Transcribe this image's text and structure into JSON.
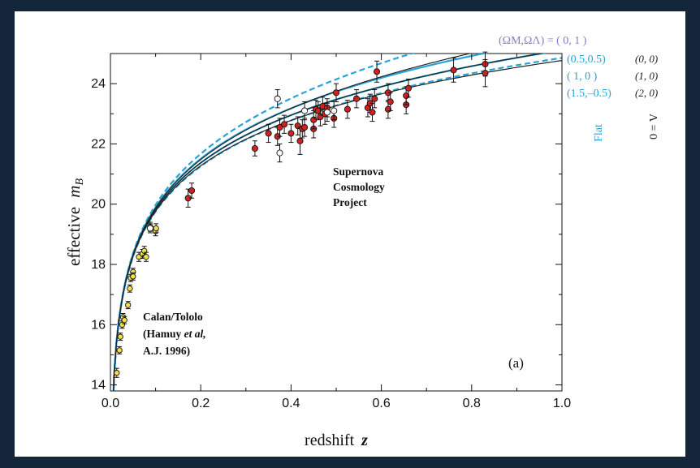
{
  "chart_data": {
    "type": "scatter",
    "xlabel_text": "redshift",
    "xlabel_var": "z",
    "ylabel_text": "effective",
    "ylabel_var": "m",
    "ylabel_sub": "B",
    "xlim": [
      0.0,
      1.0
    ],
    "ylim": [
      13.8,
      25.0
    ],
    "xticks": [
      "0.0",
      "0.2",
      "0.4",
      "0.6",
      "0.8",
      "1.0"
    ],
    "xtick_values": [
      0.0,
      0.2,
      0.4,
      0.6,
      0.8,
      1.0
    ],
    "yticks": [
      "14",
      "16",
      "18",
      "20",
      "22",
      "24"
    ],
    "ytick_values": [
      14,
      16,
      18,
      20,
      22,
      24
    ],
    "grid": false,
    "panel_label": "(a)",
    "annotations": {
      "scp": [
        "Supernova",
        "Cosmology",
        "Project"
      ],
      "calan": [
        "Calan/Tololo",
        "(Hamuy",
        "et al,",
        "A.J. 1996)"
      ]
    },
    "legend": {
      "header": "(ΩM,ΩΛ) = ( 0,   1 )",
      "header_color": "#8a7bc4",
      "flat_entries": [
        "(0.5,0.5)",
        "( 1,    0 )",
        "(1.5,–0.5)"
      ],
      "lambda0_entries": [
        "(0, 0)",
        "(1, 0)",
        "(2, 0)"
      ],
      "flat_label": "Flat",
      "lambda0_label": "Λ = 0",
      "flat_color": "#29a3d6",
      "lambda0_color": "#222222"
    },
    "colors": {
      "scp_points": "#cc2222",
      "calan_points": "#f2e04a",
      "open_points": "#ffffff",
      "flat_curves": "#29a3d6",
      "lambda0_curves": "#222222"
    },
    "series": [
      {
        "name": "Supernova Cosmology Project",
        "marker": "red",
        "points": [
          [
            0.172,
            20.2,
            0.3
          ],
          [
            0.18,
            20.45,
            0.25
          ],
          [
            0.32,
            21.85,
            0.25
          ],
          [
            0.35,
            22.35,
            0.3
          ],
          [
            0.37,
            22.25,
            0.3
          ],
          [
            0.375,
            22.55,
            0.3
          ],
          [
            0.385,
            22.65,
            0.3
          ],
          [
            0.4,
            22.35,
            0.3
          ],
          [
            0.415,
            22.6,
            0.3
          ],
          [
            0.42,
            22.1,
            0.45
          ],
          [
            0.425,
            22.5,
            0.3
          ],
          [
            0.43,
            22.55,
            0.3
          ],
          [
            0.45,
            22.5,
            0.3
          ],
          [
            0.45,
            22.8,
            0.3
          ],
          [
            0.455,
            23.15,
            0.3
          ],
          [
            0.46,
            23.1,
            0.3
          ],
          [
            0.465,
            22.9,
            0.3
          ],
          [
            0.47,
            23.25,
            0.3
          ],
          [
            0.475,
            23.0,
            0.35
          ],
          [
            0.48,
            23.2,
            0.3
          ],
          [
            0.495,
            22.85,
            0.3
          ],
          [
            0.5,
            23.7,
            0.3
          ],
          [
            0.525,
            23.15,
            0.3
          ],
          [
            0.545,
            23.5,
            0.3
          ],
          [
            0.57,
            23.2,
            0.3
          ],
          [
            0.575,
            23.35,
            0.3
          ],
          [
            0.58,
            23.05,
            0.3
          ],
          [
            0.585,
            23.5,
            0.3
          ],
          [
            0.59,
            24.4,
            0.35
          ],
          [
            0.615,
            23.7,
            0.3
          ],
          [
            0.615,
            23.15,
            0.3
          ],
          [
            0.62,
            23.4,
            0.3
          ],
          [
            0.655,
            23.3,
            0.3
          ],
          [
            0.655,
            23.6,
            0.3
          ],
          [
            0.66,
            23.85,
            0.3
          ],
          [
            0.76,
            24.45,
            0.4
          ],
          [
            0.83,
            24.65,
            0.4
          ],
          [
            0.83,
            24.35,
            0.45
          ]
        ]
      },
      {
        "name": "Calan/Tololo (Hamuy et al, A.J. 1996)",
        "marker": "yellow",
        "points": [
          [
            0.014,
            14.4,
            0.15
          ],
          [
            0.02,
            15.15,
            0.12
          ],
          [
            0.022,
            15.6,
            0.12
          ],
          [
            0.026,
            16.0,
            0.12
          ],
          [
            0.028,
            16.25,
            0.12
          ],
          [
            0.031,
            16.15,
            0.12
          ],
          [
            0.039,
            16.65,
            0.12
          ],
          [
            0.043,
            17.2,
            0.12
          ],
          [
            0.045,
            17.55,
            0.12
          ],
          [
            0.05,
            17.75,
            0.12
          ],
          [
            0.05,
            17.6,
            0.12
          ],
          [
            0.063,
            18.25,
            0.15
          ],
          [
            0.071,
            18.35,
            0.15
          ],
          [
            0.075,
            18.45,
            0.15
          ],
          [
            0.079,
            18.25,
            0.15
          ],
          [
            0.088,
            19.25,
            0.15
          ],
          [
            0.1,
            19.1,
            0.15
          ],
          [
            0.101,
            19.2,
            0.15
          ]
        ]
      },
      {
        "name": "open",
        "marker": "open",
        "points": [
          [
            0.088,
            19.2,
            0.15
          ],
          [
            0.37,
            23.5,
            0.3
          ],
          [
            0.375,
            21.7,
            0.3
          ],
          [
            0.43,
            23.1,
            0.3
          ],
          [
            0.48,
            23.05,
            0.3
          ],
          [
            0.495,
            23.1,
            0.3
          ]
        ]
      }
    ],
    "curves": [
      {
        "name": "(0, 1)",
        "family": "flat",
        "om": 0,
        "ol": 1,
        "style": "dashed"
      },
      {
        "name": "(0.5, 0.5)",
        "family": "flat",
        "om": 0.5,
        "ol": 0.5,
        "style": "solid"
      },
      {
        "name": "(1, 0)",
        "family": "flat",
        "om": 1,
        "ol": 0,
        "style": "solid"
      },
      {
        "name": "(1.5, -0.5)",
        "family": "flat",
        "om": 1.5,
        "ol": -0.5,
        "style": "dashed"
      },
      {
        "name": "(0, 0)",
        "family": "lambda0",
        "om": 0,
        "ol": 0,
        "style": "solid"
      },
      {
        "name": "(1, 0)",
        "family": "lambda0",
        "om": 1,
        "ol": 0,
        "style": "solid"
      },
      {
        "name": "(2, 0)",
        "family": "lambda0",
        "om": 2,
        "ol": 0,
        "style": "solid"
      }
    ]
  }
}
